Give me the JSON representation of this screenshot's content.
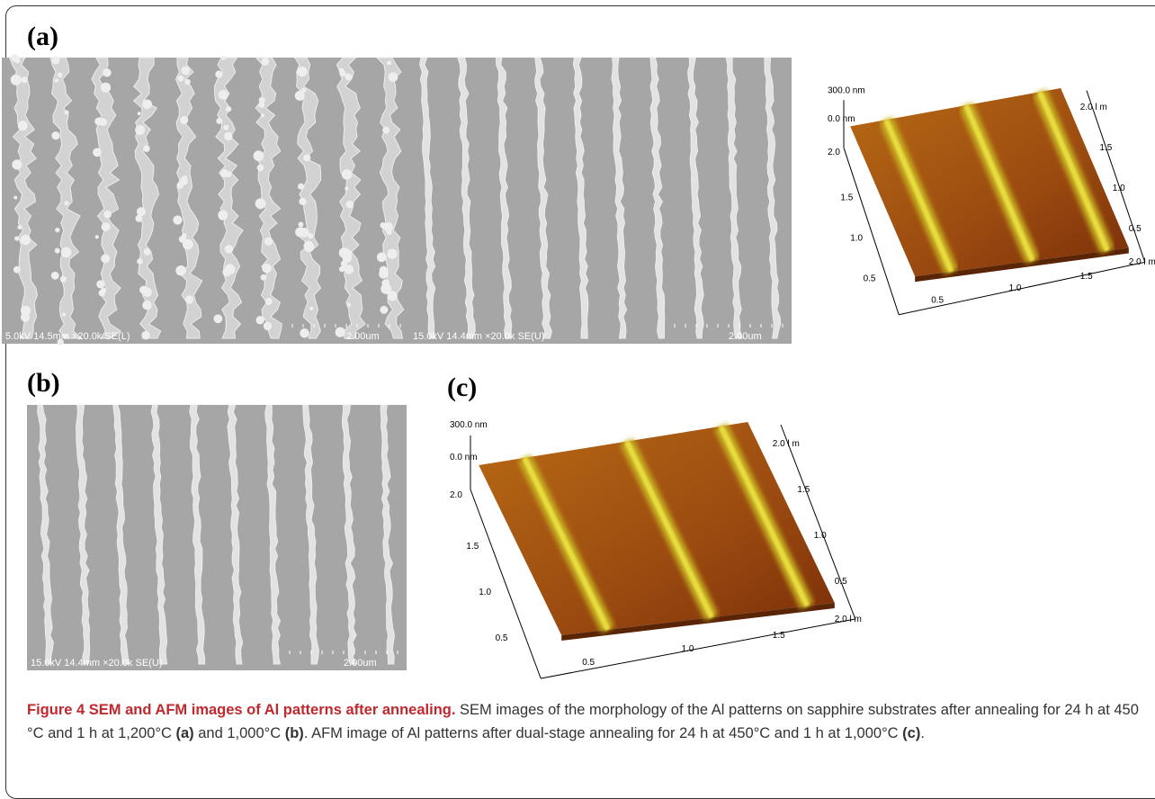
{
  "panel_labels": [
    "(a)",
    "(b)",
    "(c)"
  ],
  "sem_images": [
    {
      "info": "5.0kV 14.5mm ×20.0k SE(L)",
      "scale": "2.00um"
    },
    {
      "info": "15.0kV 14.4mm ×20.0k SE(U)",
      "scale": "2.00um"
    },
    {
      "info": "15.0kV 14.4mm ×20.0k SE(U)",
      "scale": "2.00um"
    }
  ],
  "afm_images": [
    {
      "z_top": "300.0 nm",
      "z_bottom": "0.0 nm",
      "top_right": "2.0 l m",
      "left_axis": [
        "2.0",
        "1.5",
        "1.0",
        "0.5"
      ],
      "bottom_axis": [
        "0.5",
        "1.0",
        "1.5",
        "2.0 l m"
      ],
      "right_axis": [
        "1.5",
        "1.0",
        "0.5"
      ]
    },
    {
      "z_top": "300.0 nm",
      "z_bottom": "0.0 nm",
      "top_right": "2.0 l m",
      "left_axis": [
        "2.0",
        "1.5",
        "1.0",
        "0.5"
      ],
      "bottom_axis": [
        "0.5",
        "1.0",
        "1.5",
        "2.0 l m"
      ],
      "right_axis": [
        "1.5",
        "1.0",
        "0.5"
      ]
    }
  ],
  "caption": {
    "title": "Figure 4 SEM and AFM images of Al patterns after annealing.",
    "body": [
      {
        "text": " SEM images of the morphology of the Al patterns on sapphire substrates after annealing for 24 h at 450 °C and 1 h at 1,200°C "
      },
      {
        "text": "(a)",
        "style": "bold"
      },
      {
        "text": " and 1,000°C "
      },
      {
        "text": "(b)",
        "style": "bold"
      },
      {
        "text": ". AFM image of Al patterns after dual-stage annealing for 24 h at 450°C and 1 h at 1,000°C "
      },
      {
        "text": "(c)",
        "style": "bold"
      },
      {
        "text": "."
      }
    ]
  }
}
